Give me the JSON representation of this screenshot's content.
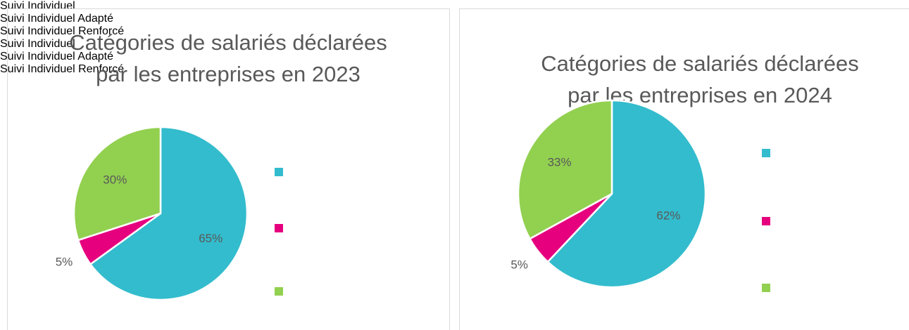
{
  "chart_data": [
    {
      "type": "pie",
      "title": [
        "Catégories de salariés déclarées",
        "par les entreprises en 2023"
      ],
      "categories": [
        "Suivi Individuel",
        "Suivi Individuel Adapté",
        "Suivi Individuel Renforcé"
      ],
      "values": [
        65,
        5,
        30
      ],
      "value_labels": [
        "65%",
        "5%",
        "30%"
      ],
      "colors": [
        "#33bccd",
        "#e6007e",
        "#92d050"
      ],
      "legend": "right"
    },
    {
      "type": "pie",
      "title": [
        "Catégories de salariés déclarées",
        "par les entreprises en 2024"
      ],
      "categories": [
        "Suivi Individuel",
        "Suivi Individuel Adapté",
        "Suivi Individuel Renforcé"
      ],
      "values": [
        62,
        5,
        33
      ],
      "value_labels": [
        "62%",
        "5%",
        "33%"
      ],
      "colors": [
        "#33bccd",
        "#e6007e",
        "#92d050"
      ],
      "legend": "right"
    }
  ]
}
